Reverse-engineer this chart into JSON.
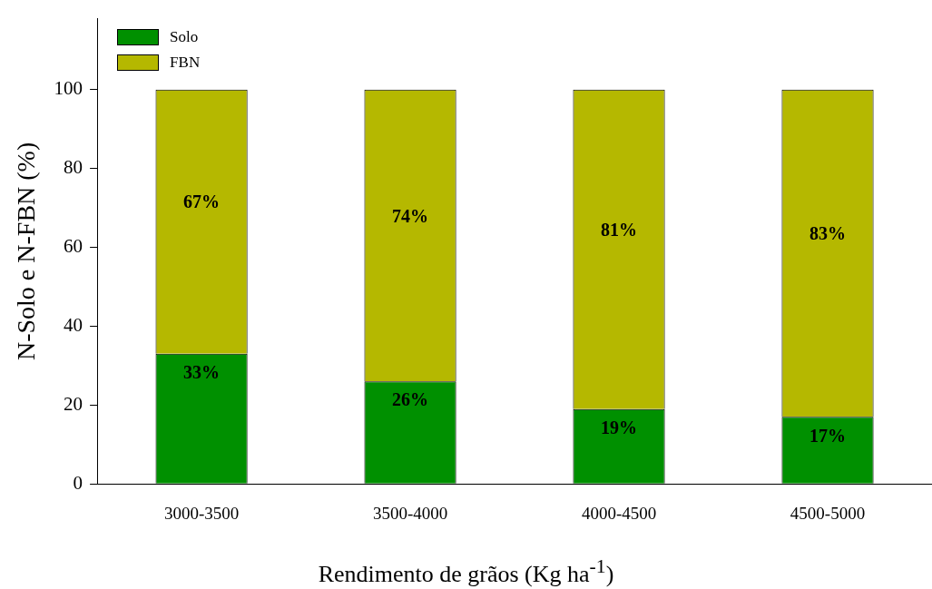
{
  "chart_data": {
    "type": "bar",
    "stacked": true,
    "xlabel": "Rendimento de grãos (Kg ha$^{-1}$)",
    "ylabel": "N-Solo e N-FBN (%)",
    "categories": [
      "3000-3500",
      "3500-4000",
      "4000-4500",
      "4500-5000"
    ],
    "series": [
      {
        "name": "Solo",
        "color": "#009000",
        "values": [
          33,
          26,
          19,
          17
        ],
        "value_labels": [
          "33%",
          "26%",
          "19%",
          "17%"
        ]
      },
      {
        "name": "FBN",
        "color": "#b5b800",
        "values": [
          67,
          74,
          81,
          83
        ],
        "value_labels": [
          "67%",
          "74%",
          "81%",
          "83%"
        ]
      }
    ],
    "ylim": [
      0,
      118
    ],
    "yticks": [
      0,
      20,
      40,
      60,
      80,
      100
    ],
    "grid": false,
    "legend": "top left"
  }
}
